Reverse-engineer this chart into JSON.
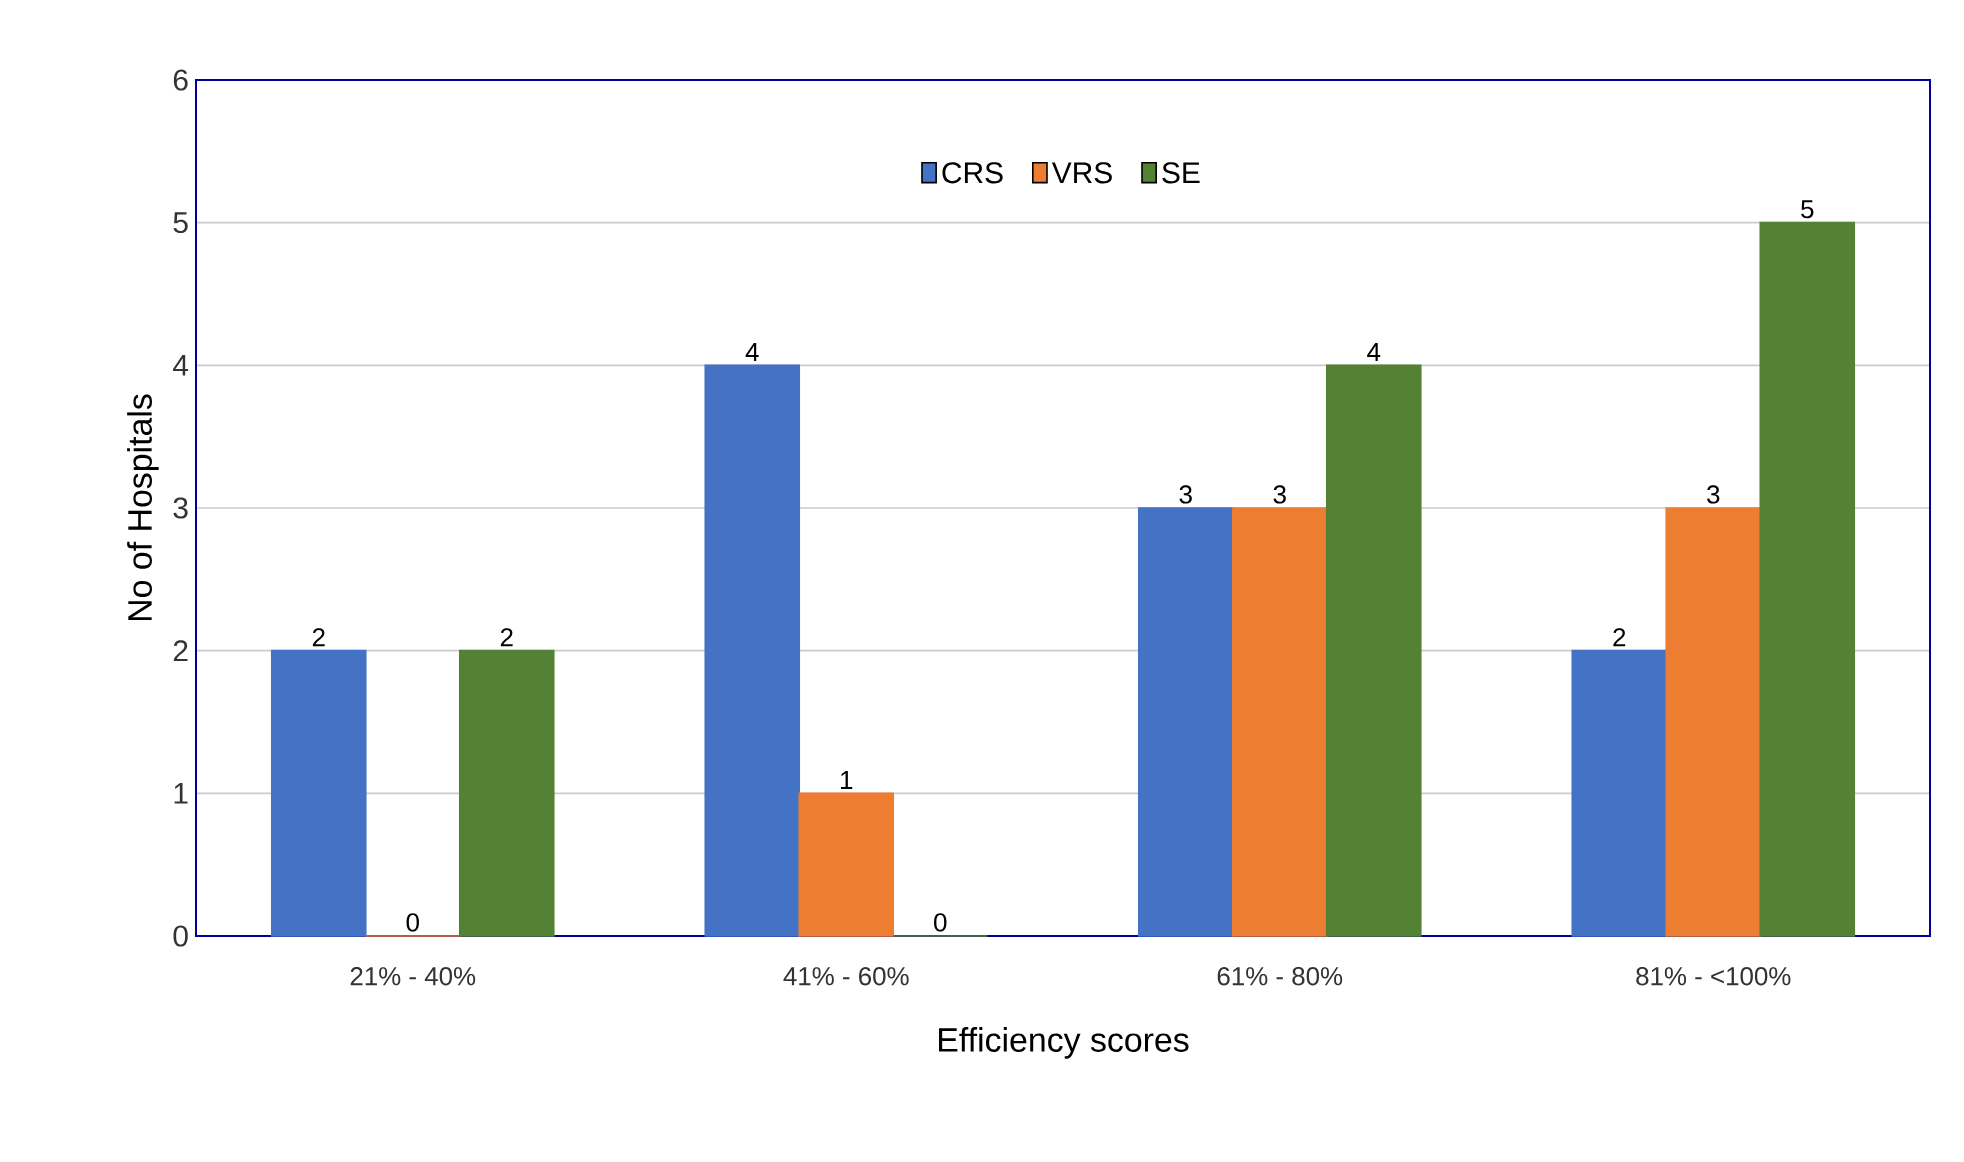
{
  "chart_data": {
    "type": "bar",
    "xlabel": "Efficiency scores",
    "ylabel": "No of Hospitals",
    "categories": [
      "21% - 40%",
      "41% - 60%",
      "61% - 80%",
      "81% - <100%"
    ],
    "series": [
      {
        "name": "CRS",
        "color": "#4472c4",
        "values": [
          2,
          4,
          3,
          2
        ]
      },
      {
        "name": "VRS",
        "color": "#ed7d31",
        "values": [
          0,
          1,
          3,
          3
        ]
      },
      {
        "name": "SE",
        "color": "#548235",
        "values": [
          2,
          0,
          4,
          5
        ]
      }
    ],
    "ylim": [
      0,
      6
    ],
    "yticks": [
      0,
      1,
      2,
      3,
      4,
      5,
      6
    ],
    "grid": "y",
    "legend": "top",
    "data_labels": true
  }
}
